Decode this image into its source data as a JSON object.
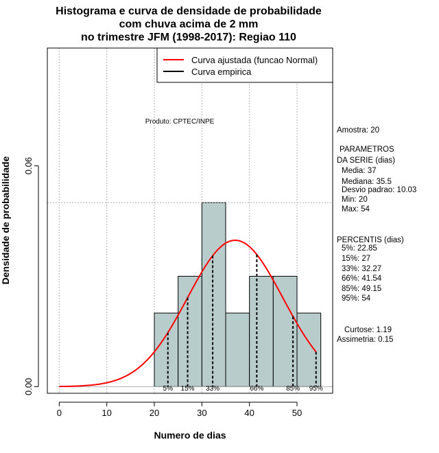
{
  "chart_data": {
    "type": "histogram",
    "title_lines": [
      "Histograma e curva de densidade de probabilidade",
      "com chuva acima de 2 mm",
      "no trimestre JFM (1998-2017): Regiao 110"
    ],
    "xlabel": "Numero de dias",
    "ylabel": "Densidade de probabilidade",
    "xlim": [
      -2.5,
      57.5
    ],
    "ylim": [
      -0.0018,
      0.092
    ],
    "x_ticks": [
      0,
      10,
      20,
      30,
      40,
      50
    ],
    "x_tick_labels": [
      "0",
      "10",
      "20",
      "30",
      "40",
      "50"
    ],
    "y_ticks": [
      0.0,
      0.06
    ],
    "y_tick_labels": [
      "0.00",
      "0.06"
    ],
    "grid": true,
    "bins": [
      {
        "start": 20,
        "end": 25,
        "density": 0.02
      },
      {
        "start": 25,
        "end": 30,
        "density": 0.03
      },
      {
        "start": 30,
        "end": 35,
        "density": 0.05
      },
      {
        "start": 35,
        "end": 40,
        "density": 0.02
      },
      {
        "start": 40,
        "end": 45,
        "density": 0.03
      },
      {
        "start": 45,
        "end": 50,
        "density": 0.03
      },
      {
        "start": 50,
        "end": 55,
        "density": 0.02
      }
    ],
    "bar_color": "#b8cccc",
    "fitted_curve": {
      "name": "Curva ajustada (funcao Normal)",
      "mean": 37,
      "sd": 10.03,
      "x_range": [
        0,
        54
      ],
      "color": "#ff0000"
    },
    "empirical_curve": {
      "name": "Curva empirica",
      "color": "#000000"
    },
    "percentiles": [
      {
        "label": "5%",
        "value": 22.85
      },
      {
        "label": "15%",
        "value": 27
      },
      {
        "label": "33%",
        "value": 32.27
      },
      {
        "label": "66%",
        "value": 41.54
      },
      {
        "label": "85%",
        "value": 49.15
      },
      {
        "label": "95%",
        "value": 54
      }
    ],
    "ref_line_y": 0.05,
    "legend": {
      "position": "top-right",
      "entries": [
        {
          "label": "Curva ajustada (funcao Normal)",
          "color": "#ff0000"
        },
        {
          "label": "Curva empirica",
          "color": "#000000"
        }
      ]
    },
    "annotation": "Produto: CPTEC/INPE",
    "side_panel": {
      "amostra": "Amostra: 20",
      "param_title_1": "PARAMETROS",
      "param_title_2": "DA SERIE (dias)",
      "params": [
        "Media: 37",
        "Mediana: 35.5",
        "Desvio padrao: 10.03",
        "Min: 20",
        "Max: 54"
      ],
      "perc_title": "PERCENTIS (dias)",
      "percentis": [
        "5%: 22.85",
        "15%: 27",
        "33%: 32.27",
        "66%: 41.54",
        "85%: 49.15",
        "95%: 54"
      ],
      "curtose": "Curtose: 1.19",
      "assimetria": "Assimetria: 0.15"
    }
  }
}
